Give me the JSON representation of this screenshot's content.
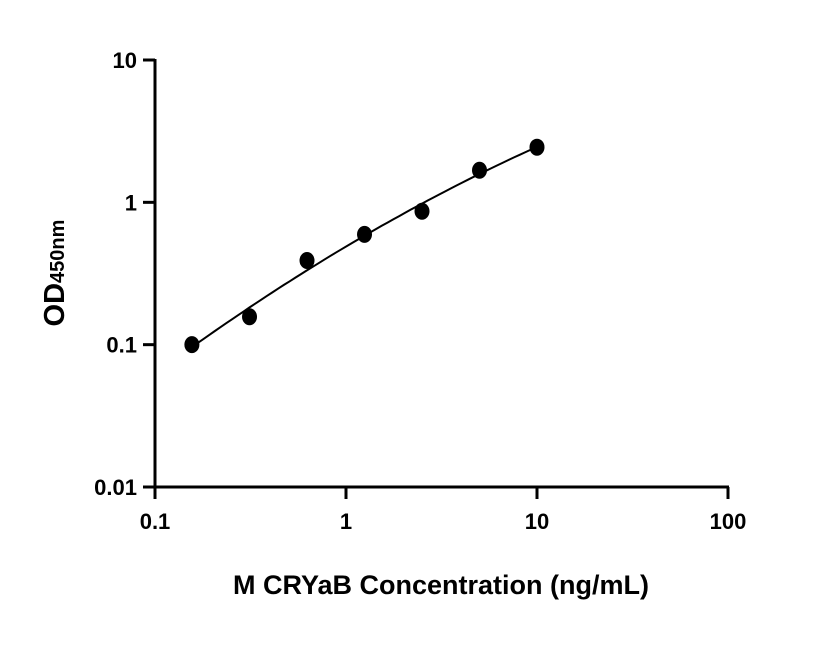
{
  "chart_data": {
    "type": "scatter",
    "title": "",
    "xlabel": "M CRYaB Concentration (ng/mL)",
    "ylabel": "OD",
    "ylabel_subscript": "450nm",
    "x_scale": "log",
    "y_scale": "log",
    "xlim": [
      0.1,
      100
    ],
    "ylim": [
      0.01,
      10
    ],
    "x_ticks": [
      "0.1",
      "1",
      "10",
      "100"
    ],
    "y_ticks": [
      "0.01",
      "0.1",
      "1",
      "10"
    ],
    "grid": false,
    "fit_line": true,
    "marker_color": "#000000",
    "series": [
      {
        "x": [
          0.156,
          0.3125,
          0.625,
          1.25,
          2.5,
          5,
          10
        ],
        "y": [
          0.1,
          0.157,
          0.39,
          0.595,
          0.865,
          1.68,
          2.44
        ]
      }
    ]
  }
}
